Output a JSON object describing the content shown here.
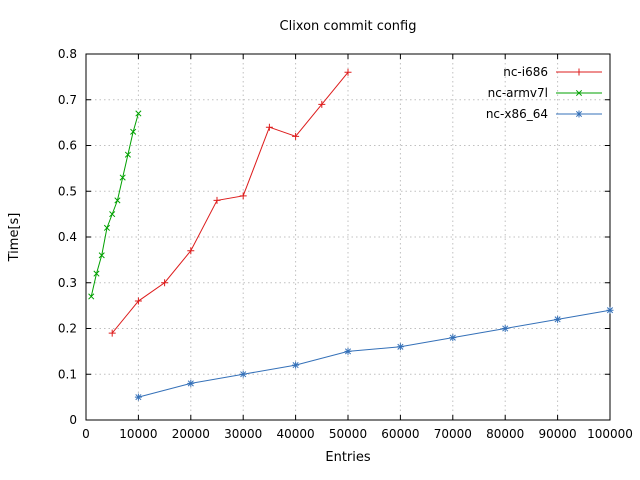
{
  "chart_data": {
    "type": "line",
    "title": "Clixon commit config",
    "xlabel": "Entries",
    "ylabel": "Time[s]",
    "xlim": [
      0,
      100000
    ],
    "ylim": [
      0,
      0.8
    ],
    "xticks": [
      0,
      10000,
      20000,
      30000,
      40000,
      50000,
      60000,
      70000,
      80000,
      90000,
      100000
    ],
    "yticks": [
      0,
      0.1,
      0.2,
      0.3,
      0.4,
      0.5,
      0.6,
      0.7,
      0.8
    ],
    "grid": true,
    "grid_style": "dotted",
    "legend_position": "top-right-inside",
    "colors": {
      "grid": "#c0c0c0",
      "border": "#000000",
      "background": "#ffffff"
    },
    "series": [
      {
        "name": "nc-i686",
        "color": "#dd1c1c",
        "marker": "plus",
        "x": [
          5000,
          10000,
          15000,
          20000,
          25000,
          30000,
          35000,
          40000,
          45000,
          50000
        ],
        "y": [
          0.19,
          0.26,
          0.3,
          0.37,
          0.48,
          0.49,
          0.64,
          0.62,
          0.69,
          0.76
        ]
      },
      {
        "name": "nc-armv7l",
        "color": "#00a000",
        "marker": "cross",
        "x": [
          1000,
          2000,
          3000,
          4000,
          5000,
          6000,
          7000,
          8000,
          9000,
          10000
        ],
        "y": [
          0.27,
          0.32,
          0.36,
          0.42,
          0.45,
          0.48,
          0.53,
          0.58,
          0.63,
          0.67
        ]
      },
      {
        "name": "nc-x86_64",
        "color": "#3470b8",
        "marker": "star",
        "x": [
          10000,
          20000,
          30000,
          40000,
          50000,
          60000,
          70000,
          80000,
          90000,
          100000
        ],
        "y": [
          0.05,
          0.08,
          0.1,
          0.12,
          0.15,
          0.16,
          0.18,
          0.2,
          0.22,
          0.24
        ]
      }
    ]
  }
}
